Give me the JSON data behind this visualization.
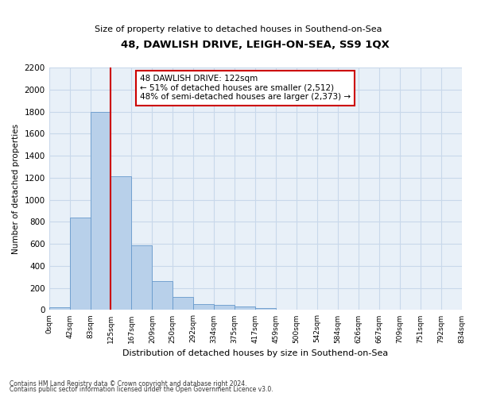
{
  "title": "48, DAWLISH DRIVE, LEIGH-ON-SEA, SS9 1QX",
  "subtitle": "Size of property relative to detached houses in Southend-on-Sea",
  "xlabel": "Distribution of detached houses by size in Southend-on-Sea",
  "ylabel": "Number of detached properties",
  "footnote1": "Contains HM Land Registry data © Crown copyright and database right 2024.",
  "footnote2": "Contains public sector information licensed under the Open Government Licence v3.0.",
  "bar_values": [
    25,
    840,
    1800,
    1210,
    590,
    260,
    115,
    50,
    45,
    30,
    15,
    0,
    0,
    0,
    0,
    0,
    0,
    0,
    0,
    0
  ],
  "bin_labels": [
    "0sqm",
    "42sqm",
    "83sqm",
    "125sqm",
    "167sqm",
    "209sqm",
    "250sqm",
    "292sqm",
    "334sqm",
    "375sqm",
    "417sqm",
    "459sqm",
    "500sqm",
    "542sqm",
    "584sqm",
    "626sqm",
    "667sqm",
    "709sqm",
    "751sqm",
    "792sqm",
    "834sqm"
  ],
  "bar_color": "#b8d0ea",
  "bar_edge_color": "#6699cc",
  "grid_color": "#c8d8ea",
  "background_color": "#e8f0f8",
  "vline_color": "#cc0000",
  "vline_position": 3,
  "annotation_text": "48 DAWLISH DRIVE: 122sqm\n← 51% of detached houses are smaller (2,512)\n48% of semi-detached houses are larger (2,373) →",
  "annotation_box_facecolor": "#ffffff",
  "annotation_box_edgecolor": "#cc0000",
  "ylim": [
    0,
    2200
  ],
  "yticks": [
    0,
    200,
    400,
    600,
    800,
    1000,
    1200,
    1400,
    1600,
    1800,
    2000,
    2200
  ]
}
